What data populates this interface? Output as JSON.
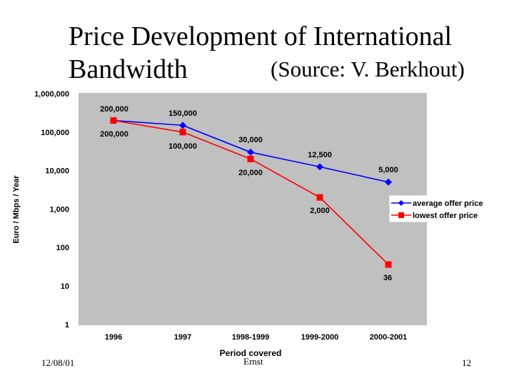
{
  "slide": {
    "title_line1": "Price Development of International",
    "title_line2": "Bandwidth",
    "source": "(Source: V. Berkhout)"
  },
  "footer": {
    "date": "12/08/01",
    "author": "Ernst",
    "page": "12"
  },
  "chart_data": {
    "type": "line",
    "title": "",
    "xlabel": "Period covered",
    "ylabel": "Euro / Mbps / Year",
    "yscale": "log",
    "ylim": [
      1,
      1000000
    ],
    "yticks": [
      {
        "value": 1000000,
        "label": "1,000,000"
      },
      {
        "value": 100000,
        "label": "100,000"
      },
      {
        "value": 10000,
        "label": "10,000"
      },
      {
        "value": 1000,
        "label": "1,000"
      },
      {
        "value": 100,
        "label": "100"
      },
      {
        "value": 10,
        "label": "10"
      },
      {
        "value": 1,
        "label": "1"
      }
    ],
    "categories": [
      "1996",
      "1997",
      "1998-1999",
      "1999-2000",
      "2000-2001"
    ],
    "grid": false,
    "legend_position": "right",
    "plot_background": "#c0c0c0",
    "series": [
      {
        "name": "average offer price",
        "color": "#0000ff",
        "marker": "diamond",
        "values": [
          200000,
          150000,
          30000,
          12500,
          5000
        ],
        "labels": [
          "200,000",
          "150,000",
          "30,000",
          "12,500",
          "5,000"
        ]
      },
      {
        "name": "lowest offer price",
        "color": "#ff0000",
        "marker": "square",
        "values": [
          200000,
          100000,
          20000,
          2000,
          36
        ],
        "labels": [
          "200,000",
          "100,000",
          "20,000",
          "2,000",
          "36"
        ]
      }
    ]
  }
}
